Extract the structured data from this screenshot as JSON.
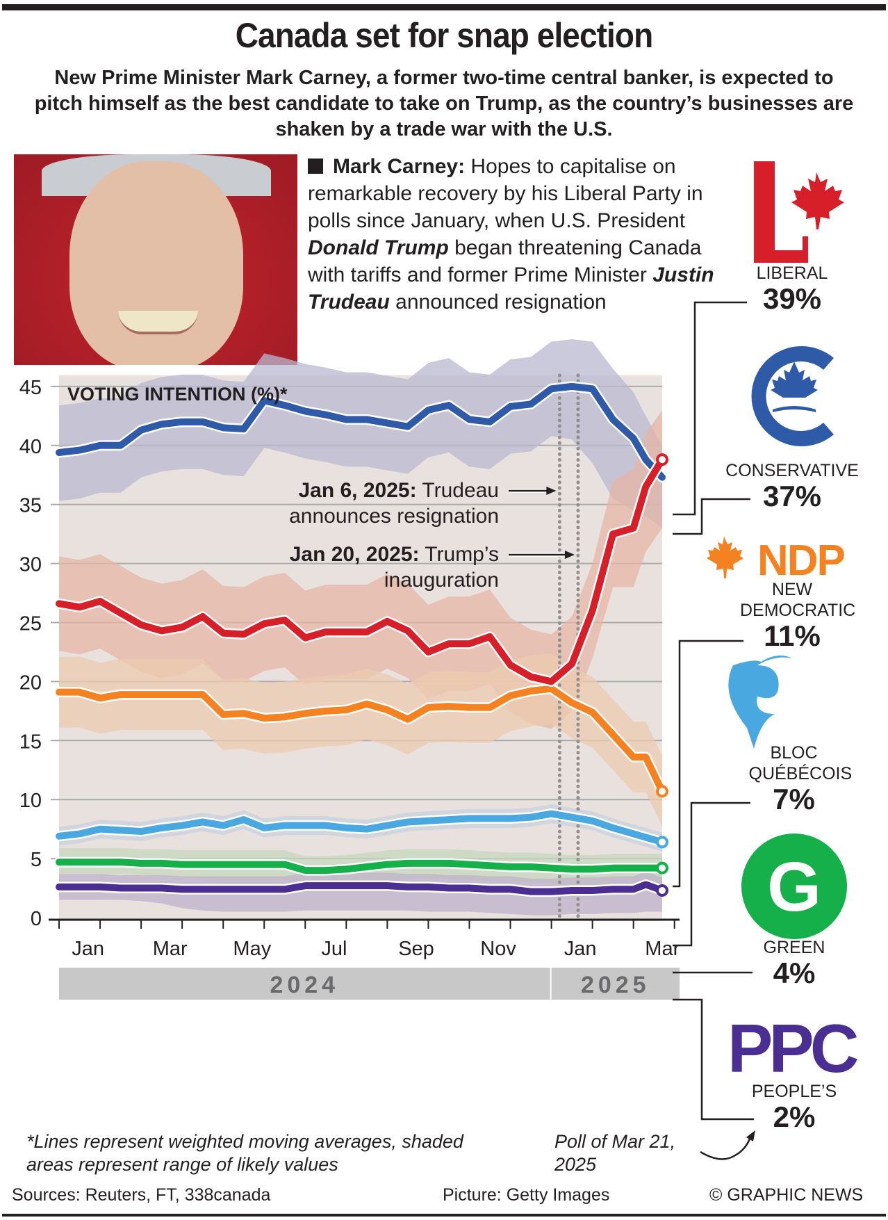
{
  "header": {
    "title": "Canada set for snap election",
    "subtitle": "New Prime Minister Mark Carney, a former two-time central banker, is expected to pitch himself as the best candidate to take on Trump, as the country’s businesses are shaken by a trade war with the U.S."
  },
  "bio": {
    "name": "Mark Carney:",
    "text1": " Hopes to capitalise on remarkable recovery by his Liberal Party in polls since January, when U.S. President ",
    "em1": "Donald Trump",
    "text2": " began threatening Canada with tariffs and former Prime Minister ",
    "em2": "Justin Trudeau",
    "text3": " announced resignation"
  },
  "parties": [
    {
      "key": "liberal",
      "name": "LIBERAL",
      "value": "39%",
      "color": "#d71f2a",
      "logo": "liberal-logo"
    },
    {
      "key": "conservative",
      "name": "CONSERVATIVE",
      "value": "37%",
      "color": "#2f5aa8",
      "logo": "conservative-logo"
    },
    {
      "key": "ndp",
      "name": "NEW DEMOCRATIC",
      "value": "11%",
      "color": "#f58220",
      "logo": "ndp-logo",
      "logo_text": "NDP"
    },
    {
      "key": "bloc",
      "name": "BLOC QUÉBÉCOIS",
      "value": "7%",
      "color": "#4aa8e0",
      "logo": "bloc-logo"
    },
    {
      "key": "green",
      "name": "GREEN",
      "value": "4%",
      "color": "#15b04a",
      "logo": "green-logo",
      "logo_text": "G"
    },
    {
      "key": "ppc",
      "name": "PEOPLE’S",
      "value": "2%",
      "color": "#4b2e91",
      "logo": "ppc-logo",
      "logo_text": "PPC"
    }
  ],
  "footer": {
    "note": "*Lines represent weighted moving averages, shaded areas represent range of likely values",
    "poll_note": "Poll of Mar 21, 2025",
    "sources": "Sources: Reuters, FT, 338canada",
    "picture": "Picture: Getty Images",
    "copyright": "© GRAPHIC NEWS"
  },
  "chart_data": {
    "type": "line",
    "title": "VOTING INTENTION (%)*",
    "xlabel": "",
    "ylabel": "",
    "ylim": [
      0,
      48
    ],
    "yticks": [
      0,
      5,
      10,
      15,
      20,
      25,
      30,
      35,
      40,
      45
    ],
    "xlim_months": [
      0,
      14.7
    ],
    "x_tick_labels": [
      {
        "label": "Jan",
        "month": 0.4
      },
      {
        "label": "Mar",
        "month": 2.4
      },
      {
        "label": "May",
        "month": 4.4
      },
      {
        "label": "Jul",
        "month": 6.4
      },
      {
        "label": "Sep",
        "month": 8.4
      },
      {
        "label": "Nov",
        "month": 10.4
      },
      {
        "label": "Jan",
        "month": 12.4
      },
      {
        "label": "Mar",
        "month": 14.4
      }
    ],
    "year_labels": [
      {
        "label": "2024",
        "from": 0,
        "to": 12
      },
      {
        "label": "2025",
        "from": 12,
        "to": 14.7
      }
    ],
    "grid": true,
    "annotations": [
      {
        "bold": "Jan 6, 2025:",
        "text": " Trudeau",
        "line2": "announces resignation",
        "month": 12.2
      },
      {
        "bold": "Jan 20, 2025:",
        "text": " Trump’s",
        "line2": "inauguration",
        "month": 12.65
      }
    ],
    "x": [
      0,
      0.5,
      1,
      1.5,
      2,
      2.5,
      3,
      3.5,
      4,
      4.5,
      5,
      5.5,
      6,
      6.5,
      7,
      7.5,
      8,
      8.5,
      9,
      9.5,
      10,
      10.5,
      11,
      11.5,
      12,
      12.5,
      13,
      13.5,
      14,
      14.3,
      14.7
    ],
    "series": [
      {
        "name": "Conservative",
        "color": "#2f5aa8",
        "band": "#b9b8d0",
        "values": [
          39.4,
          39.6,
          40,
          40,
          41.3,
          41.8,
          42,
          42,
          41.5,
          41.4,
          43.8,
          43.4,
          42.9,
          42.6,
          42.2,
          42.2,
          41.9,
          41.6,
          43,
          43.4,
          42.2,
          42,
          43.3,
          43.5,
          44.8,
          45,
          44.8,
          42.2,
          40.6,
          38.8,
          37.3
        ],
        "low": [
          35.3,
          35.5,
          36,
          36,
          37.3,
          37.8,
          38,
          38,
          37.5,
          37.4,
          39.8,
          39.4,
          38.9,
          38.6,
          38.2,
          38.2,
          37.9,
          37.6,
          39,
          39.4,
          38.2,
          38,
          39.3,
          39.5,
          40.8,
          40.5,
          38.5,
          35.5,
          34.5,
          34,
          33
        ],
        "high": [
          43.4,
          43.6,
          44,
          44,
          45.3,
          45.8,
          46,
          46,
          45.5,
          45.4,
          47.8,
          47.4,
          46.9,
          46.6,
          46.2,
          46.2,
          45.9,
          45.6,
          47,
          47.4,
          46.2,
          46,
          47.3,
          47.5,
          48.8,
          49,
          48.8,
          46.5,
          44.5,
          42.5,
          40
        ]
      },
      {
        "name": "Liberal",
        "color": "#d71f2a",
        "band": "#e5b5a6",
        "values": [
          26.6,
          26.3,
          26.8,
          25.8,
          24.8,
          24.3,
          24.6,
          25.5,
          24.1,
          24,
          24.9,
          25.2,
          23.7,
          24.2,
          24.2,
          24.2,
          25.1,
          24.3,
          22.5,
          23.2,
          23.2,
          23.8,
          21.4,
          20.4,
          20,
          21.5,
          26,
          32.5,
          33,
          36.5,
          38.8
        ],
        "low": [
          22.6,
          22.3,
          22.8,
          21.8,
          20.8,
          20.3,
          20.6,
          21.5,
          20.1,
          20,
          20.9,
          21.2,
          19.7,
          20.2,
          20.2,
          20.2,
          21.1,
          20.3,
          18.5,
          19.2,
          19.2,
          19.8,
          17.4,
          16.4,
          16,
          17.5,
          22,
          28,
          28,
          31,
          33
        ],
        "high": [
          30.6,
          30.3,
          30.8,
          29.8,
          28.8,
          28.3,
          28.6,
          29.5,
          28.1,
          28,
          28.9,
          29.2,
          27.7,
          28.2,
          28.2,
          28.2,
          29.1,
          28.3,
          26.5,
          27.2,
          27.2,
          27.8,
          25.4,
          24.4,
          24,
          25.5,
          30,
          37,
          38,
          41,
          43
        ]
      },
      {
        "name": "NDP",
        "color": "#f58220",
        "band": "#eccbb0",
        "values": [
          19.1,
          19.1,
          18.6,
          18.9,
          18.9,
          18.9,
          18.9,
          18.9,
          17.2,
          17.3,
          16.9,
          17,
          17.3,
          17.5,
          17.6,
          18.1,
          17.6,
          16.8,
          17.8,
          17.9,
          17.8,
          17.8,
          18.8,
          19.2,
          19.4,
          18.2,
          17.4,
          15.5,
          13.6,
          13.6,
          10.7
        ],
        "low": [
          16.1,
          16.1,
          15.6,
          15.9,
          15.9,
          15.9,
          15.9,
          15.9,
          14.2,
          14.3,
          13.9,
          14,
          14.3,
          14.5,
          14.6,
          15.1,
          14.6,
          13.8,
          14.8,
          14.9,
          14.8,
          14.8,
          15.8,
          16.2,
          16.4,
          15.2,
          14.4,
          12.5,
          10.6,
          10.6,
          7.7
        ],
        "high": [
          22.1,
          22.1,
          21.6,
          21.9,
          21.9,
          21.9,
          21.9,
          21.9,
          20.2,
          20.3,
          19.9,
          20,
          20.3,
          20.5,
          20.6,
          21.1,
          20.6,
          19.8,
          20.8,
          20.9,
          20.8,
          20.8,
          21.8,
          22.2,
          22.4,
          21.2,
          20.4,
          18.5,
          16.6,
          16.6,
          13.7
        ]
      },
      {
        "name": "Bloc Québécois",
        "color": "#4aa8e0",
        "band": "#c9d2de",
        "values": [
          6.9,
          7.1,
          7.5,
          7.4,
          7.3,
          7.6,
          7.8,
          8.1,
          7.8,
          8.3,
          7.6,
          7.8,
          7.8,
          7.8,
          7.6,
          7.5,
          7.8,
          8.1,
          8.2,
          8.3,
          8.4,
          8.4,
          8.4,
          8.5,
          8.8,
          8.5,
          8.2,
          7.6,
          7.1,
          6.8,
          6.4
        ],
        "low": [
          6.1,
          6.3,
          6.7,
          6.6,
          6.5,
          6.8,
          7,
          7.3,
          7,
          7.5,
          6.8,
          7,
          7,
          7,
          6.8,
          6.7,
          7,
          7.3,
          7.4,
          7.5,
          7.6,
          7.6,
          7.6,
          7.7,
          8,
          7.7,
          7.4,
          6.8,
          6.3,
          6,
          5.6
        ],
        "high": [
          7.7,
          7.9,
          8.3,
          8.2,
          8.1,
          8.4,
          8.6,
          8.9,
          8.6,
          9.1,
          8.4,
          8.6,
          8.6,
          8.6,
          8.4,
          8.3,
          8.6,
          8.9,
          9,
          9.1,
          9.2,
          9.2,
          9.2,
          9.3,
          9.6,
          9.3,
          9,
          8.4,
          7.9,
          7.6,
          7.2
        ]
      },
      {
        "name": "Green",
        "color": "#15b04a",
        "band": "#c6d5bd",
        "values": [
          4.7,
          4.7,
          4.7,
          4.7,
          4.6,
          4.6,
          4.5,
          4.5,
          4.5,
          4.5,
          4.5,
          4.5,
          4,
          4,
          4.1,
          4.3,
          4.5,
          4.6,
          4.6,
          4.6,
          4.5,
          4.4,
          4.3,
          4.3,
          4.2,
          4.1,
          4.1,
          4.2,
          4.2,
          4.2,
          4.2
        ],
        "low": [
          3.7,
          3.7,
          3.7,
          3.7,
          3.6,
          3.5,
          3.4,
          3.3,
          3.2,
          3.2,
          3.2,
          3.2,
          2.8,
          2.8,
          2.9,
          3,
          3.2,
          3.3,
          3.3,
          3.3,
          3.2,
          3.1,
          3,
          3,
          2.9,
          2.8,
          2.8,
          2.9,
          2.9,
          2.9,
          2.9
        ],
        "high": [
          5.9,
          5.9,
          5.9,
          5.9,
          5.8,
          5.8,
          5.7,
          5.7,
          5.7,
          5.7,
          5.7,
          5.7,
          5.2,
          5.2,
          5.3,
          5.5,
          5.7,
          5.8,
          5.8,
          5.8,
          5.7,
          5.6,
          5.5,
          5.5,
          5.4,
          5.3,
          5.3,
          5.4,
          5.4,
          5.4,
          5.4
        ]
      },
      {
        "name": "People's",
        "color": "#4b2e91",
        "band": "#bfb1ca",
        "values": [
          2.6,
          2.6,
          2.6,
          2.5,
          2.5,
          2.5,
          2.4,
          2.4,
          2.4,
          2.4,
          2.4,
          2.4,
          2.7,
          2.7,
          2.7,
          2.7,
          2.7,
          2.6,
          2.6,
          2.5,
          2.5,
          2.4,
          2.4,
          2.2,
          2.2,
          2.3,
          2.3,
          2.4,
          2.4,
          2.8,
          2.3
        ],
        "low": [
          1.5,
          1.5,
          1.5,
          1.5,
          1.4,
          1.2,
          0.8,
          0.6,
          0.5,
          0.5,
          0.5,
          0.5,
          0.6,
          0.6,
          0.6,
          0.6,
          0.6,
          0.6,
          0.5,
          0.5,
          0.5,
          0.4,
          0.3,
          0.2,
          0.2,
          0.3,
          0.3,
          0.4,
          0.4,
          0.5,
          0.5
        ],
        "high": [
          3.7,
          3.7,
          3.7,
          3.6,
          3.6,
          3.6,
          3.5,
          3.5,
          3.5,
          3.5,
          3.5,
          3.5,
          3.8,
          3.8,
          3.8,
          3.8,
          3.8,
          3.7,
          3.7,
          3.6,
          3.6,
          3.5,
          3.5,
          3.3,
          3.3,
          3.4,
          3.4,
          3.5,
          3.5,
          3.9,
          3.4
        ]
      }
    ],
    "final_values": {
      "Liberal": 39,
      "Conservative": 37,
      "NDP": 11,
      "Bloc Québécois": 7,
      "Green": 4,
      "People's": 2
    }
  }
}
